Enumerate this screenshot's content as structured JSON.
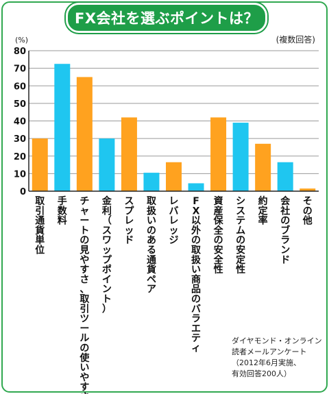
{
  "header": {
    "title": "FX会社を選ぶポイントは？"
  },
  "colors": {
    "orange": "#ffa21f",
    "blue": "#1fc6f0",
    "frame": "#2fa84f"
  },
  "chart_data": {
    "type": "bar",
    "ylabel": "(%)",
    "ylim": [
      0,
      80
    ],
    "yticks": [
      "80",
      "70",
      "60",
      "50",
      "40",
      "30",
      "20",
      "10",
      "0"
    ],
    "unit_note": "(複数回答)",
    "categories": [
      "取引通貨単位",
      "手数料",
      "チャートの見やすさ、取引ツールの使いやすさ",
      "金利（スワップポイント）",
      "スプレッド",
      "取扱いのある通貨ペア",
      "レバレッジ",
      "FX以外の取扱い商品のバラエティ",
      "資産保全の安全性",
      "システムの安定性",
      "約定率",
      "会社のブランド",
      "その他"
    ],
    "values": [
      30,
      72.5,
      65,
      30,
      42,
      10.5,
      16.5,
      4.5,
      42,
      39,
      27,
      16.5,
      1.5
    ],
    "bar_colors": [
      "orange",
      "blue",
      "orange",
      "blue",
      "orange",
      "blue",
      "orange",
      "blue",
      "orange",
      "blue",
      "orange",
      "blue",
      "orange"
    ]
  },
  "source_note": [
    "ダイヤモンド・オンライン",
    "読者メールアンケート",
    "（2012年6月実施、",
    "有効回答200人）"
  ]
}
